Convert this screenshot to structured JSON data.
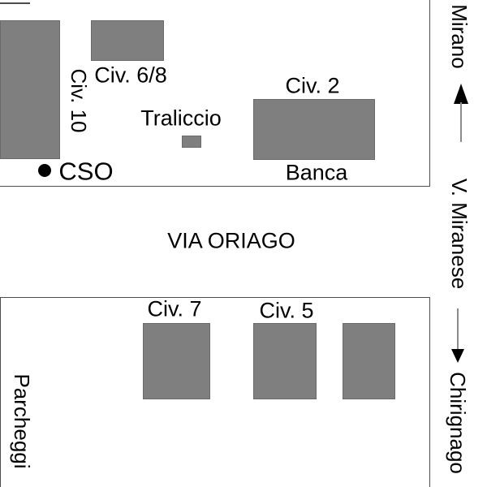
{
  "map": {
    "street_label": "VIA ORIAGO",
    "north_block": {
      "civ10_label": "Civ. 10",
      "civ68_label": "Civ. 6/8",
      "traliccio_label": "Traliccio",
      "civ2_label": "Civ. 2",
      "banca_label": "Banca",
      "cso_label": "CSO"
    },
    "south_block": {
      "civ7_label": "Civ. 7",
      "civ5_label": "Civ. 5",
      "parcheggi_label": "Parcheggi"
    },
    "right_rail": {
      "north_destination": "Mirano",
      "road_label": "V. Miranese",
      "south_destination": "Chirignago",
      "up_arrow_icon": "↑",
      "down_arrow_icon": "↓"
    },
    "colors": {
      "building_fill": "#7f7f7f",
      "building_edge": "#6a6a6a",
      "block_border": "#4d4d4d",
      "arrow_head": "#000000",
      "arrow_shaft": "#8c8c8c",
      "dot": "#000000"
    }
  }
}
